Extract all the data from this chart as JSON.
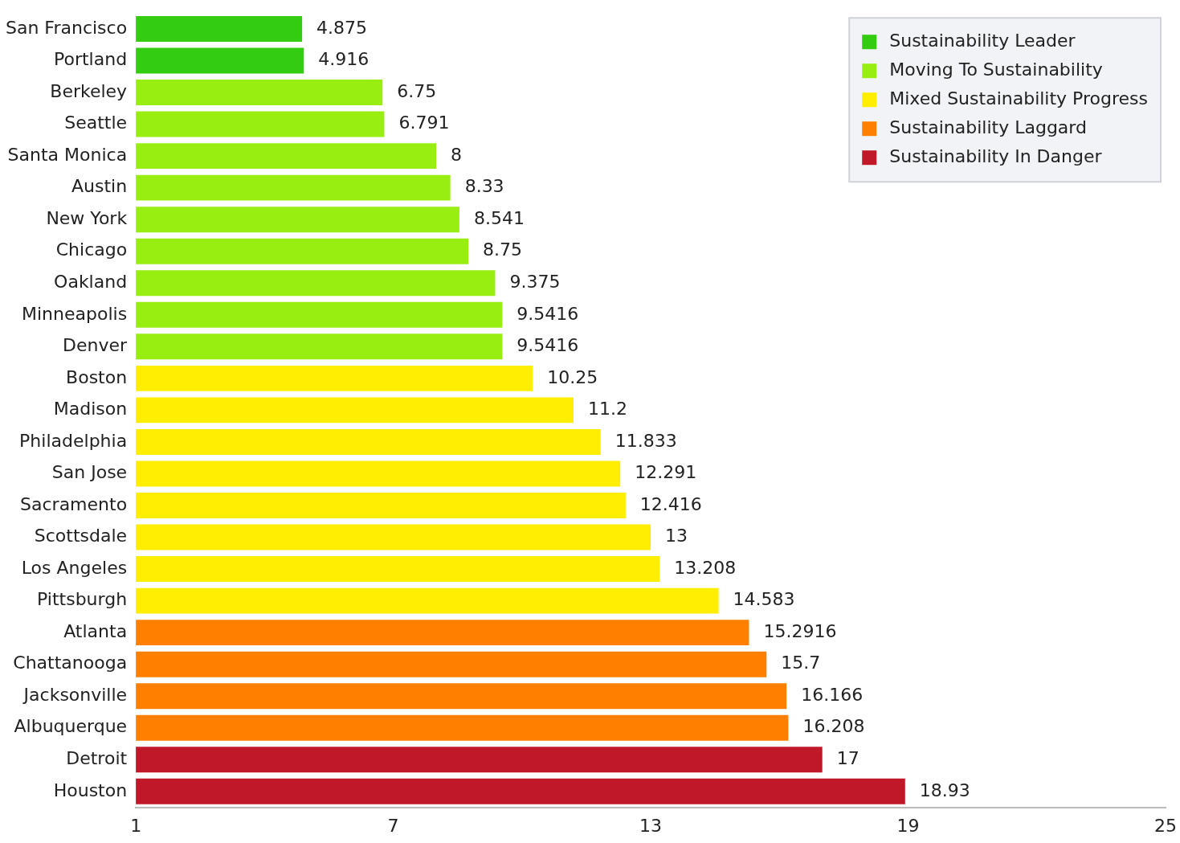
{
  "chart_data": {
    "type": "bar",
    "orientation": "horizontal",
    "categories": [
      "San Francisco",
      "Portland",
      "Berkeley",
      "Seattle",
      "Santa Monica",
      "Austin",
      "New York",
      "Chicago",
      "Oakland",
      "Minneapolis",
      "Denver",
      "Boston",
      "Madison",
      "Philadelphia",
      "San Jose",
      "Sacramento",
      "Scottsdale",
      "Los Angeles",
      "Pittsburgh",
      "Atlanta",
      "Chattanooga",
      "Jacksonville",
      "Albuquerque",
      "Detroit",
      "Houston"
    ],
    "series": [
      {
        "name": "Sustainability Leader",
        "color": "#33cc11",
        "values": [
          4.875,
          4.916,
          null,
          null,
          null,
          null,
          null,
          null,
          null,
          null,
          null,
          null,
          null,
          null,
          null,
          null,
          null,
          null,
          null,
          null,
          null,
          null,
          null,
          null,
          null
        ]
      },
      {
        "name": "Moving To Sustainability",
        "color": "#99ee11",
        "values": [
          null,
          null,
          6.75,
          6.791,
          8,
          8.33,
          8.541,
          8.75,
          9.375,
          9.5416,
          9.5416,
          null,
          null,
          null,
          null,
          null,
          null,
          null,
          null,
          null,
          null,
          null,
          null,
          null,
          null
        ]
      },
      {
        "name": "Mixed Sustainability Progress",
        "color": "#ffee00",
        "values": [
          null,
          null,
          null,
          null,
          null,
          null,
          null,
          null,
          null,
          null,
          null,
          10.25,
          11.2,
          11.833,
          12.291,
          12.416,
          13,
          13.208,
          14.583,
          null,
          null,
          null,
          null,
          null,
          null
        ]
      },
      {
        "name": "Sustainability Laggard",
        "color": "#ff8000",
        "values": [
          null,
          null,
          null,
          null,
          null,
          null,
          null,
          null,
          null,
          null,
          null,
          null,
          null,
          null,
          null,
          null,
          null,
          null,
          null,
          15.2916,
          15.7,
          16.166,
          16.208,
          null,
          null
        ]
      },
      {
        "name": "Sustainability In Danger",
        "color": "#c01828",
        "values": [
          null,
          null,
          null,
          null,
          null,
          null,
          null,
          null,
          null,
          null,
          null,
          null,
          null,
          null,
          null,
          null,
          null,
          null,
          null,
          null,
          null,
          null,
          null,
          17,
          18.93
        ]
      }
    ],
    "xlim": [
      1,
      25
    ],
    "xticks": [
      1,
      7,
      13,
      19,
      25
    ],
    "data_labels": true,
    "legend": "top right",
    "grid": false
  }
}
